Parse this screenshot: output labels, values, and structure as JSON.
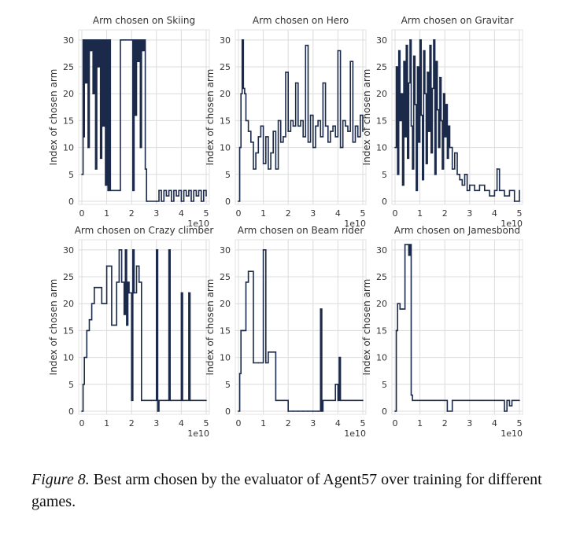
{
  "caption": {
    "label": "Figure 8.",
    "text": "Best arm chosen by the evaluator of Agent57 over training for different games."
  },
  "colors": {
    "line": "#1b2a4a",
    "grid": "#dcdcdc",
    "axis": "#444444"
  },
  "chart_data": [
    {
      "type": "line",
      "title": "Arm chosen on Skiing",
      "ylabel": "Index of chosen arm",
      "xlabel": "",
      "x_multiplier": "1e10",
      "xlim": [
        0,
        5
      ],
      "ylim": [
        0,
        31
      ],
      "xticks": [
        0,
        1,
        2,
        3,
        4,
        5
      ],
      "yticks": [
        0,
        5,
        10,
        15,
        20,
        25,
        30
      ],
      "grid": true,
      "series": [
        {
          "x": [
            0,
            0.05,
            0.08,
            0.1,
            0.15,
            0.2,
            0.25,
            0.3,
            0.35,
            0.4,
            0.45,
            0.5,
            0.55,
            0.6,
            0.65,
            0.7,
            0.75,
            0.8,
            0.85,
            0.9,
            0.95,
            1.0,
            1.05,
            1.1,
            1.15,
            1.5,
            1.55,
            1.6,
            1.65,
            1.7,
            2.0,
            2.05,
            2.1,
            2.15,
            2.2,
            2.25,
            2.3,
            2.35,
            2.4,
            2.45,
            2.5,
            2.55,
            2.6,
            2.65,
            3.0,
            3.1,
            3.2,
            3.3,
            3.4,
            3.5,
            3.6,
            3.7,
            3.8,
            3.9,
            4.0,
            4.1,
            4.2,
            4.3,
            4.4,
            4.5,
            4.6,
            4.7,
            4.8,
            4.9,
            5.0
          ],
          "y": [
            5,
            30,
            12,
            30,
            22,
            30,
            10,
            30,
            28,
            30,
            20,
            30,
            6,
            30,
            25,
            30,
            8,
            30,
            14,
            30,
            3,
            30,
            2,
            30,
            2,
            2,
            30,
            30,
            30,
            30,
            30,
            2,
            30,
            16,
            30,
            26,
            30,
            10,
            30,
            28,
            30,
            6,
            0,
            0,
            0,
            2,
            0,
            2,
            1,
            2,
            0,
            2,
            1,
            2,
            0,
            2,
            1,
            2,
            0,
            2,
            1,
            2,
            0,
            2,
            1
          ]
        }
      ]
    },
    {
      "type": "line",
      "title": "Arm chosen on Hero",
      "ylabel": "Index of chosen arm",
      "xlabel": "",
      "x_multiplier": "1e10",
      "xlim": [
        0,
        5
      ],
      "ylim": [
        0,
        31
      ],
      "xticks": [
        0,
        1,
        2,
        3,
        4,
        5
      ],
      "yticks": [
        0,
        5,
        10,
        15,
        20,
        25,
        30
      ],
      "grid": true,
      "series": [
        {
          "x": [
            0,
            0.05,
            0.1,
            0.15,
            0.2,
            0.25,
            0.3,
            0.4,
            0.5,
            0.6,
            0.7,
            0.8,
            0.9,
            1.0,
            1.1,
            1.2,
            1.3,
            1.4,
            1.5,
            1.6,
            1.7,
            1.8,
            1.9,
            2.0,
            2.1,
            2.2,
            2.3,
            2.4,
            2.5,
            2.6,
            2.7,
            2.8,
            2.9,
            3.0,
            3.1,
            3.2,
            3.3,
            3.4,
            3.5,
            3.6,
            3.7,
            3.8,
            3.9,
            4.0,
            4.1,
            4.2,
            4.3,
            4.4,
            4.5,
            4.6,
            4.7,
            4.8,
            4.9,
            5.0
          ],
          "y": [
            0,
            10,
            20,
            30,
            21,
            20,
            15,
            13,
            11,
            6,
            9,
            12,
            14,
            7,
            12,
            6,
            9,
            13,
            6,
            15,
            11,
            12,
            24,
            13,
            15,
            14,
            22,
            14,
            15,
            12,
            29,
            11,
            16,
            10,
            14,
            15,
            12,
            22,
            14,
            11,
            13,
            14,
            12,
            28,
            10,
            15,
            14,
            13,
            26,
            11,
            14,
            12,
            16,
            13
          ]
        }
      ]
    },
    {
      "type": "line",
      "title": "Arm chosen on Gravitar",
      "ylabel": "Index of chosen arm",
      "xlabel": "",
      "x_multiplier": "1e10",
      "xlim": [
        0,
        5
      ],
      "ylim": [
        0,
        31
      ],
      "xticks": [
        0,
        1,
        2,
        3,
        4,
        5
      ],
      "yticks": [
        0,
        5,
        10,
        15,
        20,
        25,
        30
      ],
      "grid": true,
      "series": [
        {
          "x": [
            0,
            0.05,
            0.1,
            0.15,
            0.2,
            0.25,
            0.3,
            0.35,
            0.4,
            0.45,
            0.5,
            0.55,
            0.6,
            0.65,
            0.7,
            0.75,
            0.8,
            0.85,
            0.9,
            0.95,
            1.0,
            1.05,
            1.1,
            1.15,
            1.2,
            1.25,
            1.3,
            1.35,
            1.4,
            1.45,
            1.5,
            1.55,
            1.6,
            1.65,
            1.7,
            1.75,
            1.8,
            1.85,
            1.9,
            1.95,
            2.0,
            2.05,
            2.1,
            2.15,
            2.2,
            2.3,
            2.4,
            2.5,
            2.6,
            2.7,
            2.8,
            2.9,
            3.0,
            3.2,
            3.4,
            3.6,
            3.8,
            4.0,
            4.1,
            4.2,
            4.4,
            4.6,
            4.8,
            5.0
          ],
          "y": [
            10,
            25,
            5,
            28,
            15,
            20,
            3,
            26,
            12,
            29,
            8,
            22,
            30,
            14,
            6,
            27,
            18,
            2,
            25,
            11,
            30,
            16,
            4,
            28,
            20,
            7,
            24,
            13,
            29,
            9,
            21,
            30,
            5,
            26,
            17,
            10,
            23,
            15,
            6,
            20,
            12,
            18,
            8,
            14,
            10,
            6,
            9,
            5,
            4,
            3,
            5,
            2,
            3,
            2,
            3,
            2,
            1,
            2,
            6,
            2,
            1,
            2,
            0,
            2
          ]
        }
      ]
    },
    {
      "type": "line",
      "title": "Arm chosen on Crazy climber",
      "ylabel": "Index of chosen arm",
      "xlabel": "",
      "x_multiplier": "1e10",
      "xlim": [
        0,
        5
      ],
      "ylim": [
        0,
        31
      ],
      "xticks": [
        0,
        1,
        2,
        3,
        4,
        5
      ],
      "yticks": [
        0,
        5,
        10,
        15,
        20,
        25,
        30
      ],
      "grid": true,
      "series": [
        {
          "x": [
            0,
            0.05,
            0.1,
            0.2,
            0.3,
            0.4,
            0.5,
            0.6,
            0.7,
            0.8,
            0.9,
            1.0,
            1.1,
            1.2,
            1.3,
            1.4,
            1.5,
            1.6,
            1.7,
            1.75,
            1.8,
            1.85,
            1.9,
            2.0,
            2.05,
            2.1,
            2.2,
            2.3,
            2.4,
            2.5,
            2.6,
            2.8,
            3.0,
            3.05,
            3.1,
            3.3,
            3.5,
            3.55,
            3.6,
            3.8,
            4.0,
            4.05,
            4.1,
            4.2,
            4.3,
            4.35,
            4.4,
            4.5,
            4.6,
            4.8,
            5.0
          ],
          "y": [
            0,
            5,
            10,
            15,
            17,
            20,
            23,
            23,
            23,
            20,
            20,
            27,
            27,
            16,
            16,
            24,
            30,
            24,
            18,
            30,
            16,
            24,
            22,
            2,
            30,
            22,
            27,
            24,
            2,
            2,
            2,
            2,
            30,
            0,
            2,
            2,
            30,
            2,
            2,
            2,
            22,
            2,
            2,
            2,
            22,
            2,
            2,
            2,
            2,
            2,
            2
          ]
        }
      ]
    },
    {
      "type": "line",
      "title": "Arm chosen on Beam rider",
      "ylabel": "Index of chosen arm",
      "xlabel": "",
      "x_multiplier": "1e10",
      "xlim": [
        0,
        5
      ],
      "ylim": [
        0,
        31
      ],
      "xticks": [
        0,
        1,
        2,
        3,
        4,
        5
      ],
      "yticks": [
        0,
        5,
        10,
        15,
        20,
        25,
        30
      ],
      "grid": true,
      "series": [
        {
          "x": [
            0,
            0.05,
            0.1,
            0.2,
            0.3,
            0.4,
            0.5,
            0.6,
            0.8,
            1.0,
            1.1,
            1.2,
            1.3,
            1.5,
            1.6,
            1.8,
            2.0,
            2.2,
            2.4,
            2.6,
            2.8,
            3.0,
            3.2,
            3.3,
            3.35,
            3.4,
            3.6,
            3.8,
            3.9,
            4.0,
            4.05,
            4.1,
            4.3,
            4.5,
            4.7,
            5.0
          ],
          "y": [
            0,
            7,
            15,
            15,
            24,
            26,
            26,
            9,
            9,
            30,
            9,
            11,
            11,
            2,
            2,
            2,
            0,
            0,
            0,
            0,
            0,
            0,
            0,
            19,
            0,
            2,
            2,
            2,
            5,
            2,
            10,
            2,
            2,
            2,
            2,
            2
          ]
        }
      ]
    },
    {
      "type": "line",
      "title": "Arm chosen on Jamesbond",
      "ylabel": "Index of chosen arm",
      "xlabel": "",
      "x_multiplier": "1e10",
      "xlim": [
        0,
        5
      ],
      "ylim": [
        0,
        31
      ],
      "xticks": [
        0,
        1,
        2,
        3,
        4,
        5
      ],
      "yticks": [
        0,
        5,
        10,
        15,
        20,
        25,
        30
      ],
      "grid": true,
      "series": [
        {
          "x": [
            0,
            0.05,
            0.1,
            0.2,
            0.3,
            0.4,
            0.5,
            0.55,
            0.6,
            0.65,
            0.7,
            0.8,
            1.0,
            1.2,
            1.4,
            1.6,
            1.8,
            2.0,
            2.1,
            2.3,
            2.5,
            3.0,
            3.5,
            4.0,
            4.3,
            4.4,
            4.5,
            4.6,
            4.7,
            4.8,
            5.0
          ],
          "y": [
            0,
            15,
            20,
            19,
            19,
            31,
            31,
            29,
            31,
            3,
            2,
            2,
            2,
            2,
            2,
            2,
            2,
            2,
            0,
            2,
            2,
            2,
            2,
            2,
            2,
            0,
            2,
            1,
            2,
            2,
            2
          ]
        }
      ]
    }
  ]
}
